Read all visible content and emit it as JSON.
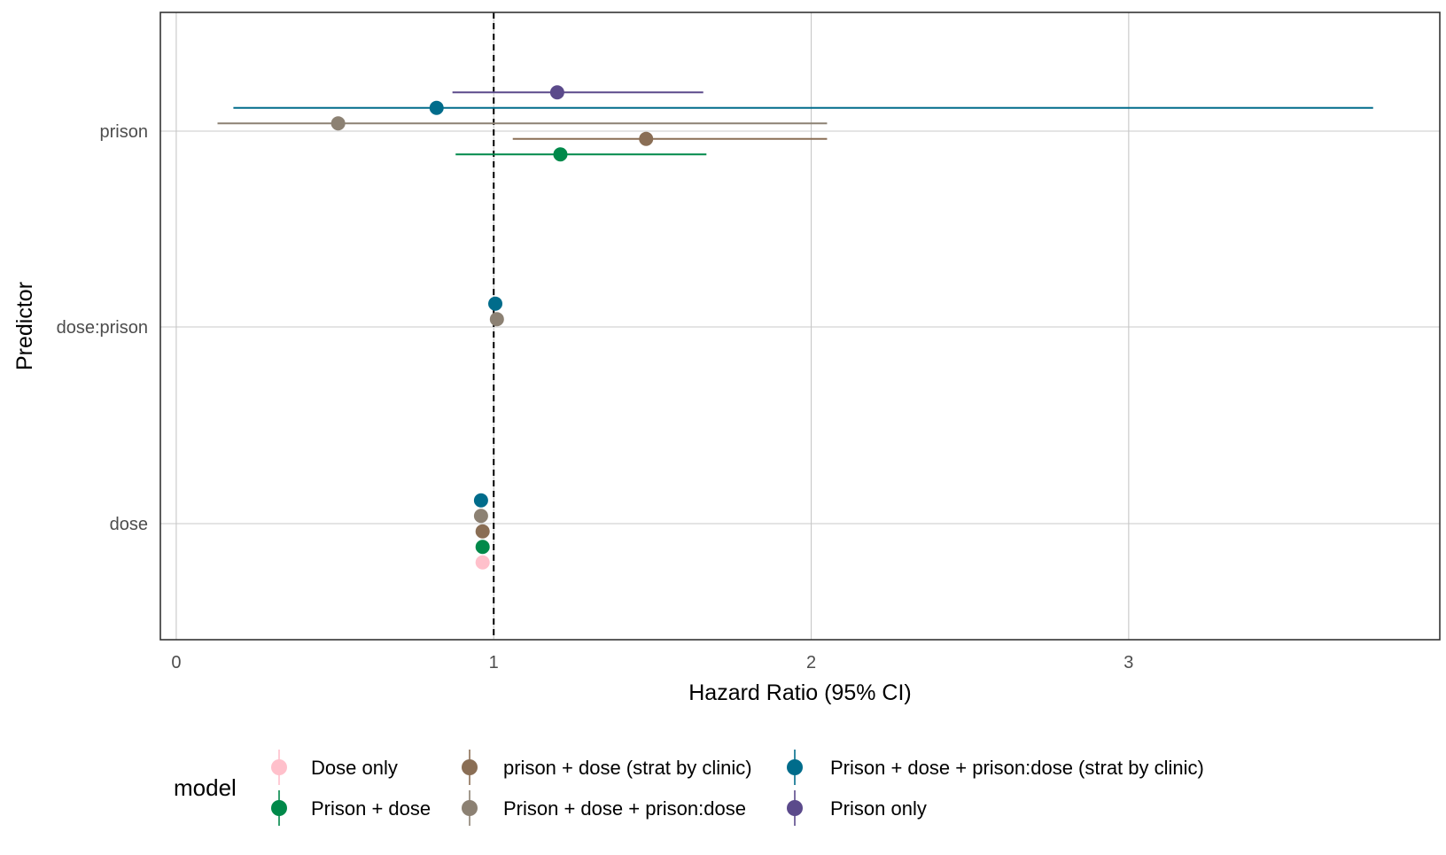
{
  "chart_data": {
    "type": "scatter",
    "subtype": "forest-plot-with-error-bars",
    "xlabel": "Hazard Ratio (95% CI)",
    "ylabel": "Predictor",
    "xlim": [
      -0.05,
      3.98
    ],
    "x_ticks": [
      0,
      1,
      2,
      3
    ],
    "x_tick_labels": [
      "0",
      "1",
      "2",
      "3"
    ],
    "y_categories": [
      "dose",
      "dose:prison",
      "prison"
    ],
    "reference_line": {
      "x": 1,
      "style": "dashed",
      "color": "#000000"
    },
    "grid": true,
    "legend": {
      "title": "model",
      "position": "bottom",
      "items": [
        {
          "label": "Dose only",
          "color": "#ffc0cb"
        },
        {
          "label": "Prison + dose",
          "color": "#00894a"
        },
        {
          "label": "prison + dose (strat by clinic)",
          "color": "#8a6e55"
        },
        {
          "label": "Prison + dose + prison:dose",
          "color": "#8c8173"
        },
        {
          "label": "Prison + dose + prison:dose (strat by clinic)",
          "color": "#006c8b"
        },
        {
          "label": "Prison only",
          "color": "#5b4a8b"
        }
      ]
    },
    "series": [
      {
        "name": "Dose only",
        "color": "#ffc0cb",
        "points": [
          {
            "predictor": "dose",
            "estimate": 0.965,
            "lower": 0.955,
            "upper": 0.975
          }
        ]
      },
      {
        "name": "Prison + dose",
        "color": "#00894a",
        "points": [
          {
            "predictor": "dose",
            "estimate": 0.965,
            "lower": 0.955,
            "upper": 0.975
          },
          {
            "predictor": "prison",
            "estimate": 1.21,
            "lower": 0.88,
            "upper": 1.67
          }
        ]
      },
      {
        "name": "prison + dose (strat by clinic)",
        "color": "#8a6e55",
        "points": [
          {
            "predictor": "dose",
            "estimate": 0.965,
            "lower": 0.955,
            "upper": 0.975
          },
          {
            "predictor": "prison",
            "estimate": 1.48,
            "lower": 1.06,
            "upper": 2.05
          }
        ]
      },
      {
        "name": "Prison + dose + prison:dose",
        "color": "#8c8173",
        "points": [
          {
            "predictor": "dose",
            "estimate": 0.96,
            "lower": 0.945,
            "upper": 0.975
          },
          {
            "predictor": "dose:prison",
            "estimate": 1.01,
            "lower": 0.995,
            "upper": 1.025
          },
          {
            "predictor": "prison",
            "estimate": 0.51,
            "lower": 0.13,
            "upper": 2.05
          }
        ]
      },
      {
        "name": "Prison + dose + prison:dose (strat by clinic)",
        "color": "#006c8b",
        "points": [
          {
            "predictor": "dose",
            "estimate": 0.96,
            "lower": 0.945,
            "upper": 0.975
          },
          {
            "predictor": "dose:prison",
            "estimate": 1.005,
            "lower": 0.99,
            "upper": 1.02
          },
          {
            "predictor": "prison",
            "estimate": 0.82,
            "lower": 0.18,
            "upper": 3.77
          }
        ]
      },
      {
        "name": "Prison only",
        "color": "#5b4a8b",
        "points": [
          {
            "predictor": "prison",
            "estimate": 1.2,
            "lower": 0.87,
            "upper": 1.66
          }
        ]
      }
    ]
  }
}
